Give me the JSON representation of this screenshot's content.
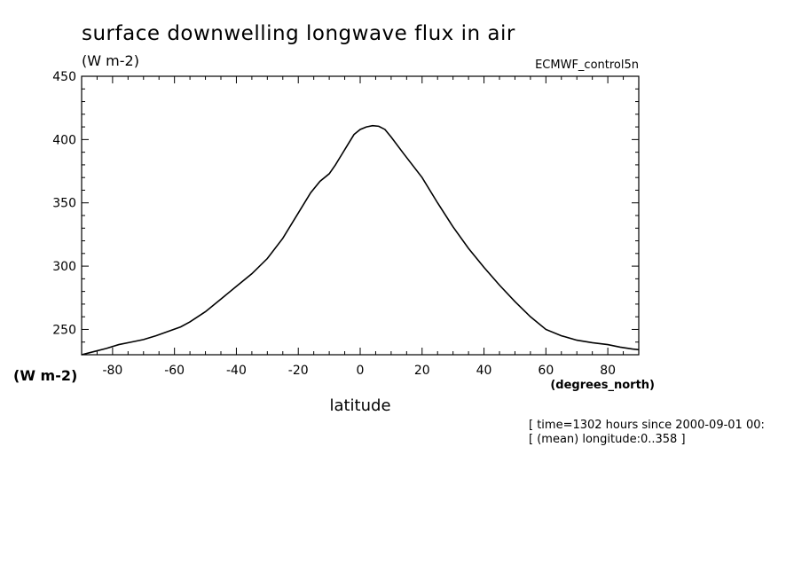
{
  "chart_data": {
    "type": "line",
    "title": "surface downwelling longwave flux in air",
    "units_label": "(W m-2)",
    "dataset_label": "ECMWF_control5n",
    "xlabel": "latitude",
    "xunits_label": "(degrees_north)",
    "yunits_label": "(W m-2)",
    "xlim": [
      -90,
      90
    ],
    "ylim": [
      230,
      450
    ],
    "xticks": [
      -80,
      -60,
      -40,
      -20,
      0,
      20,
      40,
      60,
      80
    ],
    "xtick_labels": [
      "-80",
      "-60",
      "-40",
      "-20",
      "0",
      "20",
      "40",
      "60",
      "80"
    ],
    "yticks": [
      250,
      300,
      350,
      400,
      450
    ],
    "ytick_labels": [
      "250",
      "300",
      "350",
      "400",
      "450"
    ],
    "grid": false,
    "annotations": [
      "[ time=1302 hours since 2000-09-01 00:",
      "[ (mean) longitude:0..358 ]"
    ],
    "series": [
      {
        "x": [
          -90,
          -86,
          -82,
          -78,
          -74,
          -70,
          -66,
          -62,
          -58,
          -55,
          -50,
          -45,
          -40,
          -35,
          -30,
          -25,
          -20,
          -16,
          -13,
          -10,
          -8,
          -6,
          -4,
          -2,
          0,
          2,
          4,
          6,
          8,
          10,
          14,
          20,
          25,
          30,
          35,
          40,
          45,
          50,
          55,
          60,
          65,
          70,
          75,
          80,
          84,
          88,
          90
        ],
        "y": [
          230,
          232.5,
          235,
          238,
          240,
          242,
          245,
          248.5,
          252,
          256,
          264,
          274,
          284,
          294,
          306,
          322,
          342,
          358,
          367,
          373,
          380,
          388,
          396,
          404,
          408,
          410,
          411,
          410.5,
          408,
          402,
          389,
          370,
          350,
          331,
          314,
          299,
          285,
          272,
          260,
          250,
          245,
          241.5,
          239.5,
          238,
          236,
          234.5,
          234
        ]
      }
    ]
  }
}
